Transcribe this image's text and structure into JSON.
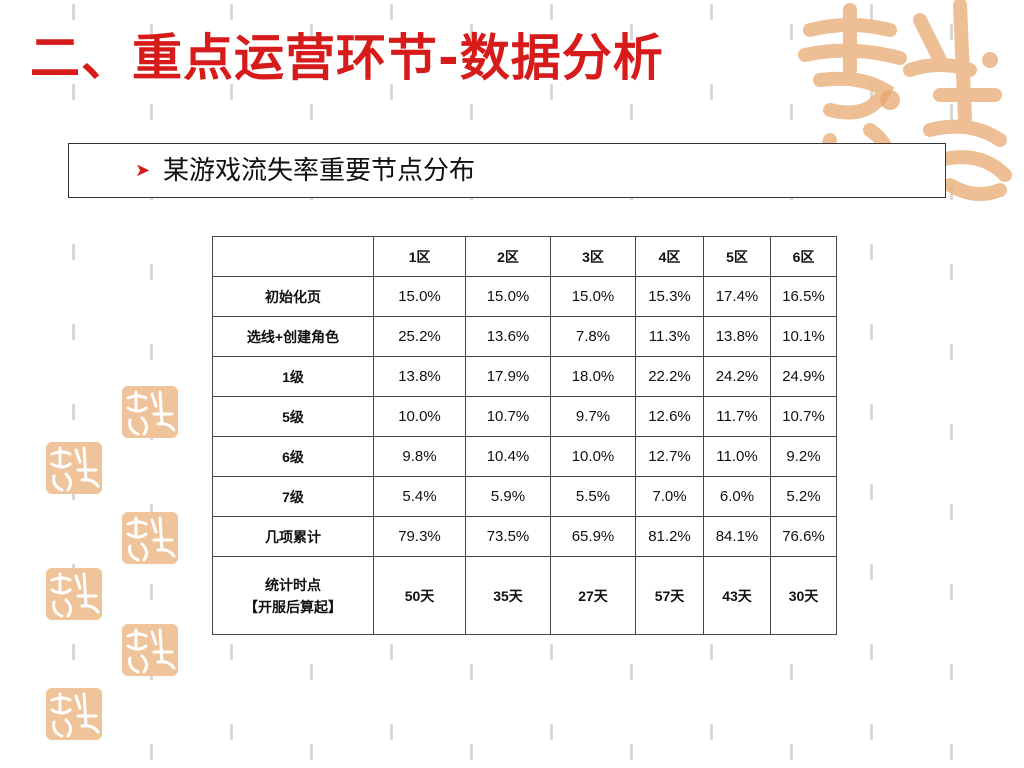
{
  "title": "二、重点运营环节-数据分析",
  "subtitle": "某游戏流失率重要节点分布",
  "table": {
    "headers": [
      "",
      "1区",
      "2区",
      "3区",
      "4区",
      "5区",
      "6区"
    ],
    "rows": [
      {
        "label": "初始化页",
        "cells": [
          "15.0%",
          "15.0%",
          "15.0%",
          "15.3%",
          "17.4%",
          "16.5%"
        ]
      },
      {
        "label": "选线+创建角色",
        "cells": [
          "25.2%",
          "13.6%",
          "7.8%",
          "11.3%",
          "13.8%",
          "10.1%"
        ]
      },
      {
        "label": "1级",
        "cells": [
          "13.8%",
          "17.9%",
          "18.0%",
          "22.2%",
          "24.2%",
          "24.9%"
        ]
      },
      {
        "label": "5级",
        "cells": [
          "10.0%",
          "10.7%",
          "9.7%",
          "12.6%",
          "11.7%",
          "10.7%"
        ]
      },
      {
        "label": "6级",
        "cells": [
          "9.8%",
          "10.4%",
          "10.0%",
          "12.7%",
          "11.0%",
          "9.2%"
        ]
      },
      {
        "label": "7级",
        "cells": [
          "5.4%",
          "5.9%",
          "5.5%",
          "7.0%",
          "6.0%",
          "5.2%"
        ]
      },
      {
        "label": "几项累计",
        "cells": [
          "79.3%",
          "73.5%",
          "65.9%",
          "81.2%",
          "84.1%",
          "76.6%"
        ]
      }
    ],
    "last_row": {
      "label_line1": "统计时点",
      "label_line2": "【开服后算起】",
      "cells": [
        "50天",
        "35天",
        "27天",
        "57天",
        "43天",
        "30天"
      ]
    }
  },
  "colors": {
    "title": "#d71a1a",
    "seal": "#e8a86a",
    "grid_dash": "#d8d8d8"
  },
  "icons": {
    "bullet": "arrow-bullet-icon",
    "seal": "auspicious-seal-icon"
  }
}
